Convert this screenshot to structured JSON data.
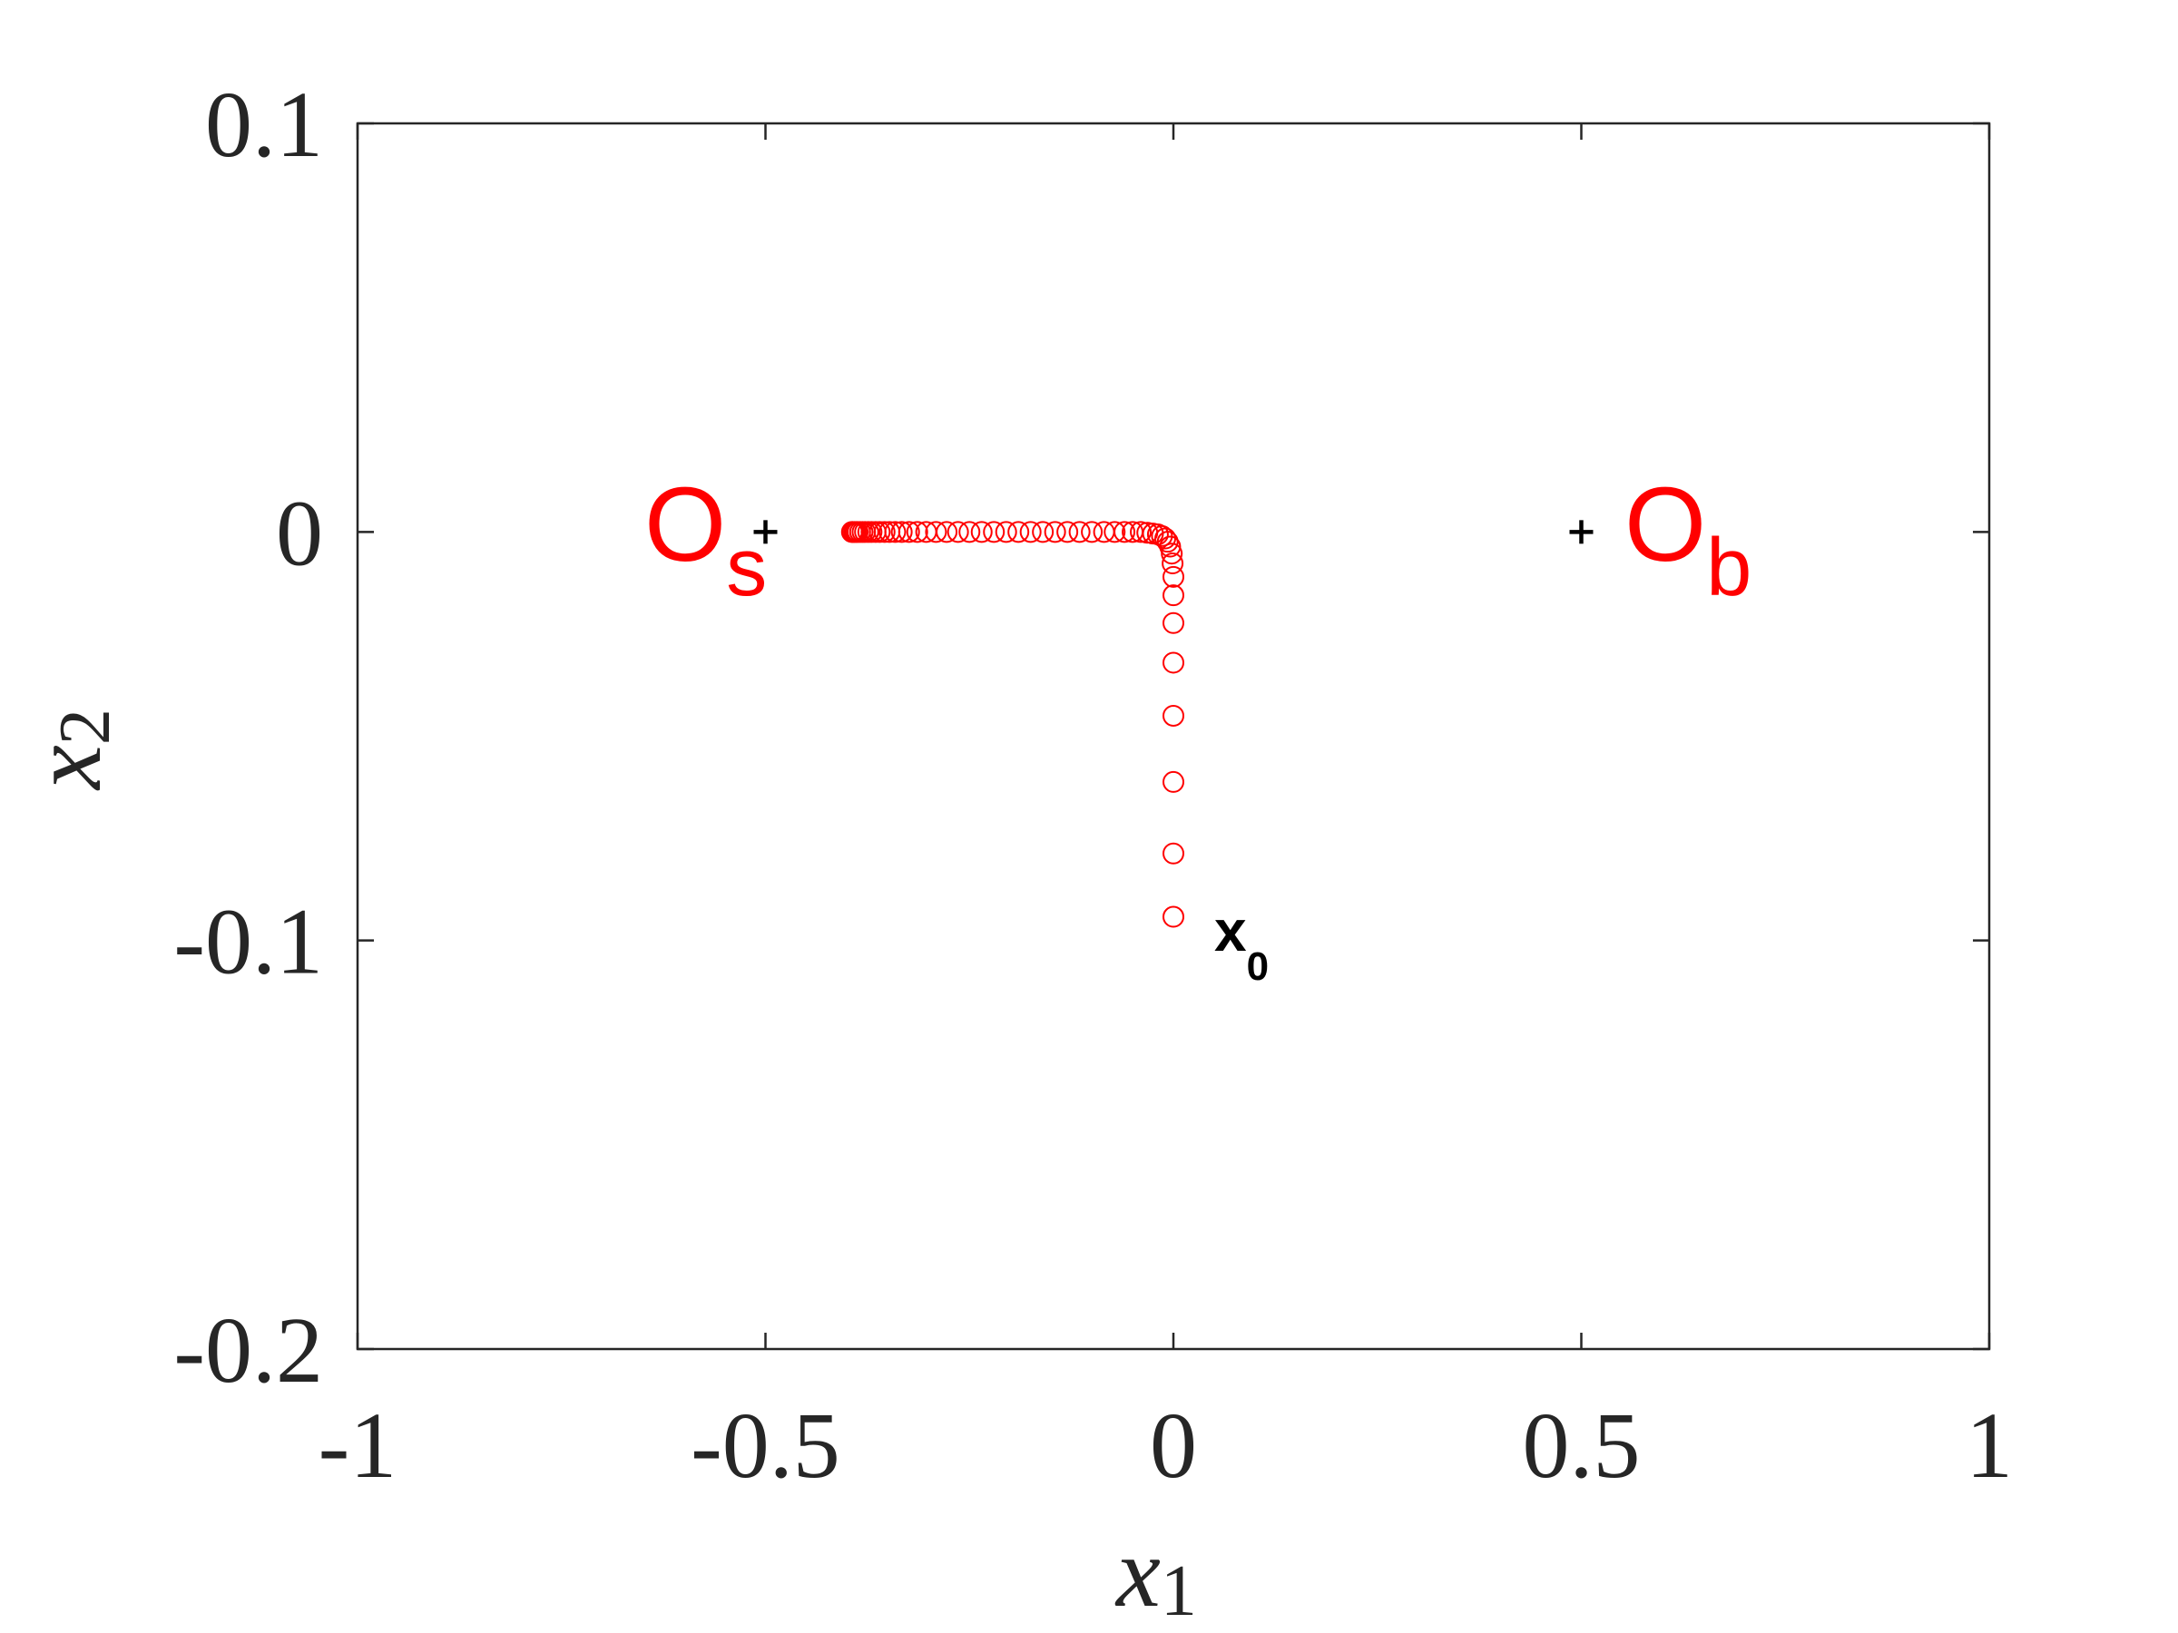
{
  "chart_data": {
    "type": "scatter",
    "xlabel": {
      "text": "x",
      "sub": "1"
    },
    "ylabel": {
      "text": "x",
      "sub": "2"
    },
    "xlim": [
      -1,
      1
    ],
    "xticks": [
      -1,
      -0.5,
      0,
      0.5,
      1
    ],
    "ylim": [
      -0.2,
      0.1
    ],
    "yticks": [
      -0.2,
      -0.1,
      0,
      0.1
    ],
    "grid": false,
    "series": [
      {
        "marker": "circle",
        "color": "#ff0000",
        "x": [
          0,
          0,
          0,
          0,
          0,
          0,
          0,
          0,
          -0.001,
          -0.002,
          -0.004,
          -0.007,
          -0.01,
          -0.014,
          -0.019,
          -0.025,
          -0.032,
          -0.04,
          -0.05,
          -0.06,
          -0.072,
          -0.085,
          -0.1,
          -0.115,
          -0.13,
          -0.145,
          -0.16,
          -0.175,
          -0.19,
          -0.205,
          -0.22,
          -0.235,
          -0.25,
          -0.264,
          -0.278,
          -0.291,
          -0.303,
          -0.314,
          -0.324,
          -0.333,
          -0.341,
          -0.348,
          -0.354,
          -0.36,
          -0.365,
          -0.37,
          -0.374,
          -0.378,
          -0.381,
          -0.384,
          -0.387,
          -0.389,
          -0.391,
          -0.393,
          -0.394
        ],
        "y": [
          -0.0942,
          -0.0787,
          -0.0612,
          -0.045,
          -0.032,
          -0.0223,
          -0.0155,
          -0.011,
          -0.0077,
          -0.0053,
          -0.0036,
          -0.0024,
          -0.0016,
          -0.001,
          -0.0006,
          -0.0004,
          -0.0002,
          0,
          0,
          0,
          0,
          0,
          0,
          0,
          0,
          0,
          0,
          0,
          0,
          0,
          0,
          0,
          0,
          0,
          0,
          0,
          0,
          0,
          0,
          0,
          0,
          0,
          0,
          0,
          0,
          0,
          0,
          0,
          0,
          0,
          0,
          0,
          0,
          0,
          0
        ]
      },
      {
        "marker": "plus",
        "color": "#000000",
        "x": [
          -0.5,
          0.5
        ],
        "y": [
          0,
          0
        ]
      }
    ],
    "annotations": [
      {
        "text": "O",
        "sub": "s",
        "color": "#ff0000"
      },
      {
        "text": "O",
        "sub": "b",
        "color": "#ff0000"
      },
      {
        "text": "x",
        "sub": "0",
        "color": "#000000"
      }
    ]
  }
}
